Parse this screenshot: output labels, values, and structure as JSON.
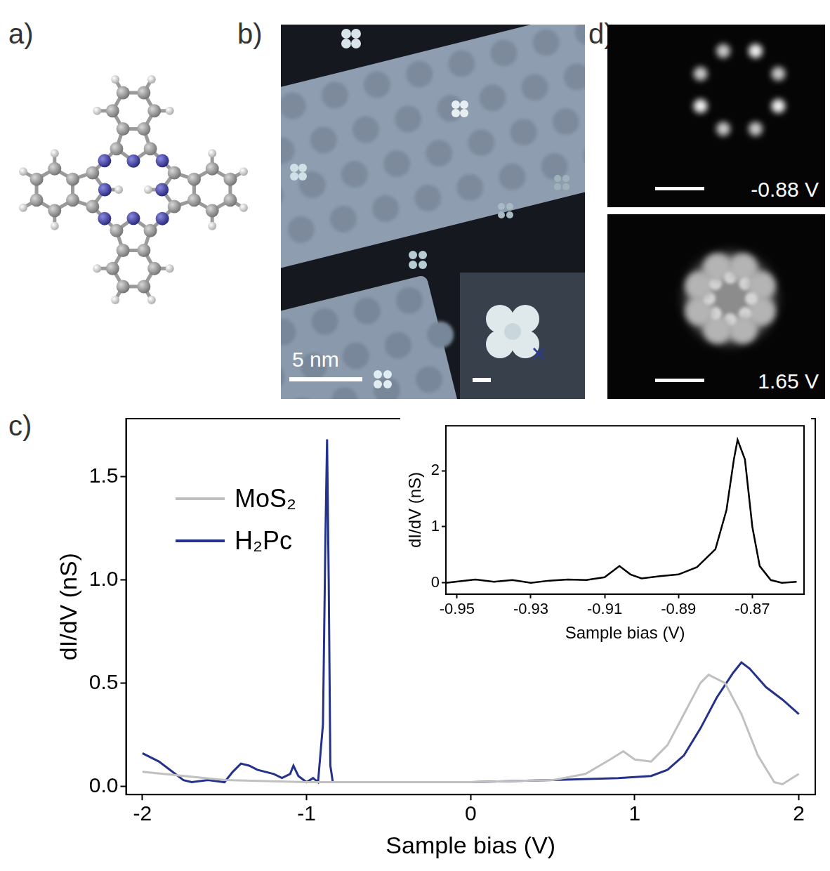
{
  "panels": [
    {
      "label": "a)"
    },
    {
      "label": "b)",
      "scale_bar": "5 nm"
    },
    {
      "label": "c)"
    },
    {
      "label": "d)",
      "images": [
        {
          "bias": "-0.88 V"
        },
        {
          "bias": "1.65 V"
        }
      ]
    }
  ],
  "chart_data": [
    {
      "type": "line",
      "x_label": "Sample bias (V)",
      "y_label": "dI/dV (nS)",
      "xlim": [
        -2.1,
        2.1
      ],
      "xticks": [
        -2,
        -1,
        0,
        1,
        2
      ],
      "ylim": [
        -0.04,
        1.78
      ],
      "yticks": [
        {
          "value": 0,
          "label": "0.0"
        },
        0.5,
        {
          "value": 1,
          "label": "1.0"
        },
        1.5
      ],
      "legend": "left",
      "grid": false,
      "series": [
        {
          "name": "MoS₂",
          "color": "#c0c0c0",
          "x": [
            -2.0,
            -1.5,
            -1.0,
            0.0,
            0.5,
            0.7,
            0.85,
            0.93,
            1.0,
            1.1,
            1.2,
            1.3,
            1.4,
            1.45,
            1.55,
            1.65,
            1.75,
            1.85,
            1.9,
            2.0
          ],
          "values": [
            0.07,
            0.03,
            0.02,
            0.02,
            0.03,
            0.06,
            0.13,
            0.17,
            0.13,
            0.12,
            0.2,
            0.35,
            0.5,
            0.54,
            0.5,
            0.35,
            0.15,
            0.02,
            0.01,
            0.06
          ]
        },
        {
          "name": "H₂Pc",
          "color": "#25328a",
          "x": [
            -2.0,
            -1.9,
            -1.8,
            -1.75,
            -1.7,
            -1.6,
            -1.5,
            -1.45,
            -1.4,
            -1.35,
            -1.3,
            -1.2,
            -1.15,
            -1.1,
            -1.08,
            -1.05,
            -1.0,
            -0.96,
            -0.93,
            -0.9,
            -0.885,
            -0.875,
            -0.865,
            -0.855,
            -0.84,
            -0.7,
            -0.4,
            0.0,
            0.5,
            0.9,
            1.1,
            1.2,
            1.3,
            1.4,
            1.5,
            1.6,
            1.65,
            1.7,
            1.8,
            1.9,
            2.0
          ],
          "values": [
            0.16,
            0.12,
            0.06,
            0.03,
            0.02,
            0.03,
            0.02,
            0.07,
            0.11,
            0.1,
            0.08,
            0.06,
            0.04,
            0.06,
            0.1,
            0.05,
            0.02,
            0.04,
            0.02,
            0.3,
            1.2,
            1.68,
            1.0,
            0.1,
            0.02,
            0.02,
            0.02,
            0.02,
            0.03,
            0.04,
            0.05,
            0.08,
            0.15,
            0.28,
            0.43,
            0.55,
            0.6,
            0.57,
            0.48,
            0.42,
            0.35
          ]
        }
      ]
    },
    {
      "type": "line",
      "x_label": "Sample bias (V)",
      "y_label": "dI/dV (nS)",
      "xlim": [
        -0.953,
        -0.856
      ],
      "xticks": [
        -0.95,
        -0.93,
        -0.91,
        -0.89,
        -0.87
      ],
      "ylim": [
        -0.2,
        2.8
      ],
      "yticks": [
        0,
        1,
        2
      ],
      "grid": false,
      "series": [
        {
          "color": "#000000",
          "x": [
            -0.953,
            -0.945,
            -0.94,
            -0.935,
            -0.93,
            -0.925,
            -0.92,
            -0.915,
            -0.91,
            -0.906,
            -0.903,
            -0.9,
            -0.895,
            -0.89,
            -0.885,
            -0.88,
            -0.877,
            -0.875,
            -0.874,
            -0.872,
            -0.87,
            -0.868,
            -0.865,
            -0.862,
            -0.858
          ],
          "values": [
            0.0,
            0.06,
            0.02,
            0.05,
            0.0,
            0.04,
            0.06,
            0.05,
            0.1,
            0.3,
            0.15,
            0.08,
            0.12,
            0.15,
            0.28,
            0.6,
            1.3,
            2.2,
            2.55,
            2.2,
            1.0,
            0.3,
            0.05,
            0.0,
            0.02
          ]
        }
      ]
    }
  ]
}
